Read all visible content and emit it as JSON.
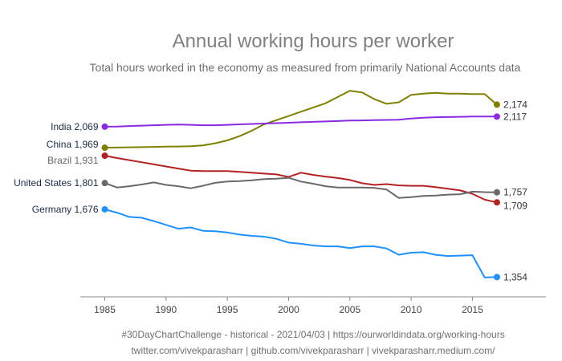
{
  "chart_data": {
    "type": "line",
    "title": "Annual working hours per worker",
    "subtitle": "Total hours worked in the economy as measured from primarily National Accounts data",
    "x_ticks": [
      1985,
      1990,
      1995,
      2000,
      2005,
      2010,
      2015
    ],
    "xlim": [
      1983,
      2021
    ],
    "ylim": [
      1260,
      2290
    ],
    "grid": false,
    "x": [
      1985,
      1986,
      1987,
      1988,
      1989,
      1990,
      1991,
      1992,
      1993,
      1994,
      1995,
      1996,
      1997,
      1998,
      1999,
      2000,
      2001,
      2002,
      2003,
      2004,
      2005,
      2006,
      2007,
      2008,
      2009,
      2010,
      2011,
      2012,
      2013,
      2014,
      2015,
      2016,
      2017
    ],
    "series": [
      {
        "name": "China",
        "color": "#808000",
        "start_label": "China 1,969",
        "end_label": "2,174",
        "values": [
          1969,
          1970,
          1971,
          1972,
          1973,
          1974,
          1975,
          1976,
          1980,
          1990,
          2004,
          2024,
          2050,
          2080,
          2100,
          2120,
          2140,
          2160,
          2180,
          2210,
          2240,
          2232,
          2200,
          2178,
          2185,
          2220,
          2226,
          2230,
          2226,
          2226,
          2224,
          2224,
          2174
        ]
      },
      {
        "name": "India",
        "color": "#8a2be2",
        "start_label": "India 2,069",
        "end_label": "2,117",
        "values": [
          2069,
          2070,
          2072,
          2074,
          2076,
          2078,
          2079,
          2078,
          2076,
          2076,
          2078,
          2080,
          2082,
          2084,
          2086,
          2088,
          2090,
          2092,
          2094,
          2096,
          2098,
          2099,
          2100,
          2101,
          2102,
          2108,
          2112,
          2114,
          2115,
          2116,
          2117,
          2117,
          2117
        ]
      },
      {
        "name": "Brazil",
        "color": "#b22222",
        "start_label": "Brazil 1,931",
        "end_label": "1,709",
        "values": [
          1931,
          1920,
          1910,
          1900,
          1890,
          1880,
          1870,
          1860,
          1858,
          1858,
          1858,
          1854,
          1850,
          1846,
          1842,
          1830,
          1850,
          1840,
          1832,
          1825,
          1816,
          1800,
          1792,
          1796,
          1790,
          1788,
          1788,
          1782,
          1774,
          1766,
          1750,
          1722,
          1709
        ]
      },
      {
        "name": "United States",
        "color": "#696969",
        "start_label": "United States 1,801",
        "end_label": "1,757",
        "values": [
          1801,
          1780,
          1786,
          1794,
          1804,
          1792,
          1786,
          1776,
          1788,
          1802,
          1808,
          1810,
          1814,
          1820,
          1822,
          1826,
          1808,
          1798,
          1786,
          1780,
          1780,
          1780,
          1778,
          1770,
          1730,
          1734,
          1740,
          1742,
          1746,
          1748,
          1760,
          1758,
          1757
        ]
      },
      {
        "name": "Germany",
        "color": "#1e90ff",
        "start_label": "Germany 1,676",
        "end_label": "1,354",
        "values": [
          1676,
          1660,
          1640,
          1636,
          1620,
          1602,
          1584,
          1590,
          1574,
          1572,
          1566,
          1556,
          1550,
          1546,
          1536,
          1518,
          1512,
          1504,
          1500,
          1500,
          1492,
          1500,
          1500,
          1490,
          1460,
          1470,
          1472,
          1460,
          1454,
          1456,
          1458,
          1352,
          1354
        ]
      }
    ]
  },
  "captions": {
    "line1": "#30DayChartChallenge - historical - 2021/04/03 | https://ourworldindata.org/working-hours",
    "line2": "twitter.com/vivekparasharr | github.com/vivekparasharr | vivekparasharr.medium.com/"
  }
}
